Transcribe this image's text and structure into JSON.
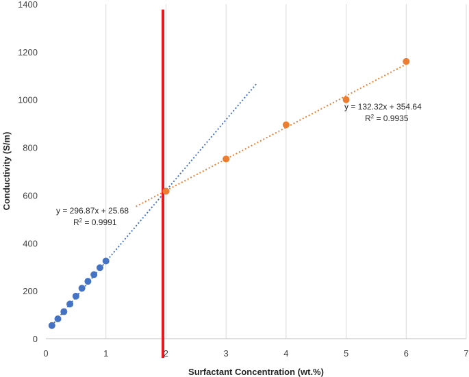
{
  "chart_data": {
    "type": "scatter",
    "xlabel": "Surfactant Concentration (wt.%)",
    "ylabel": "Conductivity (S/m)",
    "xlim": [
      0,
      7
    ],
    "ylim": [
      0,
      1400
    ],
    "x_ticks": [
      "0",
      "1",
      "2",
      "3",
      "4",
      "5",
      "6",
      "7"
    ],
    "y_ticks": [
      "0",
      "200",
      "400",
      "600",
      "800",
      "1000",
      "1200",
      "1400"
    ],
    "grid": "vertical",
    "series": [
      {
        "color": "#4472C4",
        "points": [
          [
            0.1,
            55
          ],
          [
            0.2,
            83
          ],
          [
            0.3,
            113
          ],
          [
            0.4,
            145
          ],
          [
            0.5,
            178
          ],
          [
            0.6,
            211
          ],
          [
            0.7,
            240
          ],
          [
            0.8,
            268
          ],
          [
            0.9,
            297
          ],
          [
            1.0,
            325
          ],
          [
            2.0,
            617
          ]
        ],
        "trendline": {
          "slope": 296.87,
          "intercept": 25.68,
          "x_range": [
            0.1,
            3.5
          ]
        }
      },
      {
        "color": "#ED7D31",
        "points": [
          [
            2.0,
            617
          ],
          [
            3.0,
            752
          ],
          [
            4.0,
            895
          ],
          [
            5.0,
            1000
          ],
          [
            6.0,
            1160
          ]
        ],
        "trendline": {
          "slope": 132.32,
          "intercept": 354.64,
          "x_range": [
            1.5,
            6.0
          ]
        }
      }
    ],
    "vertical_line": {
      "x": 1.95,
      "color": "#E8191A"
    },
    "annotations": {
      "blue_equation": "y = 296.87x + 25.68",
      "blue_r2_base": "R",
      "blue_r2_value": " = 0.9991",
      "orange_equation": "y = 132.32x + 354.64",
      "orange_r2_base": "R",
      "orange_r2_value": " = 0.9935",
      "r2_exponent": "2"
    }
  }
}
